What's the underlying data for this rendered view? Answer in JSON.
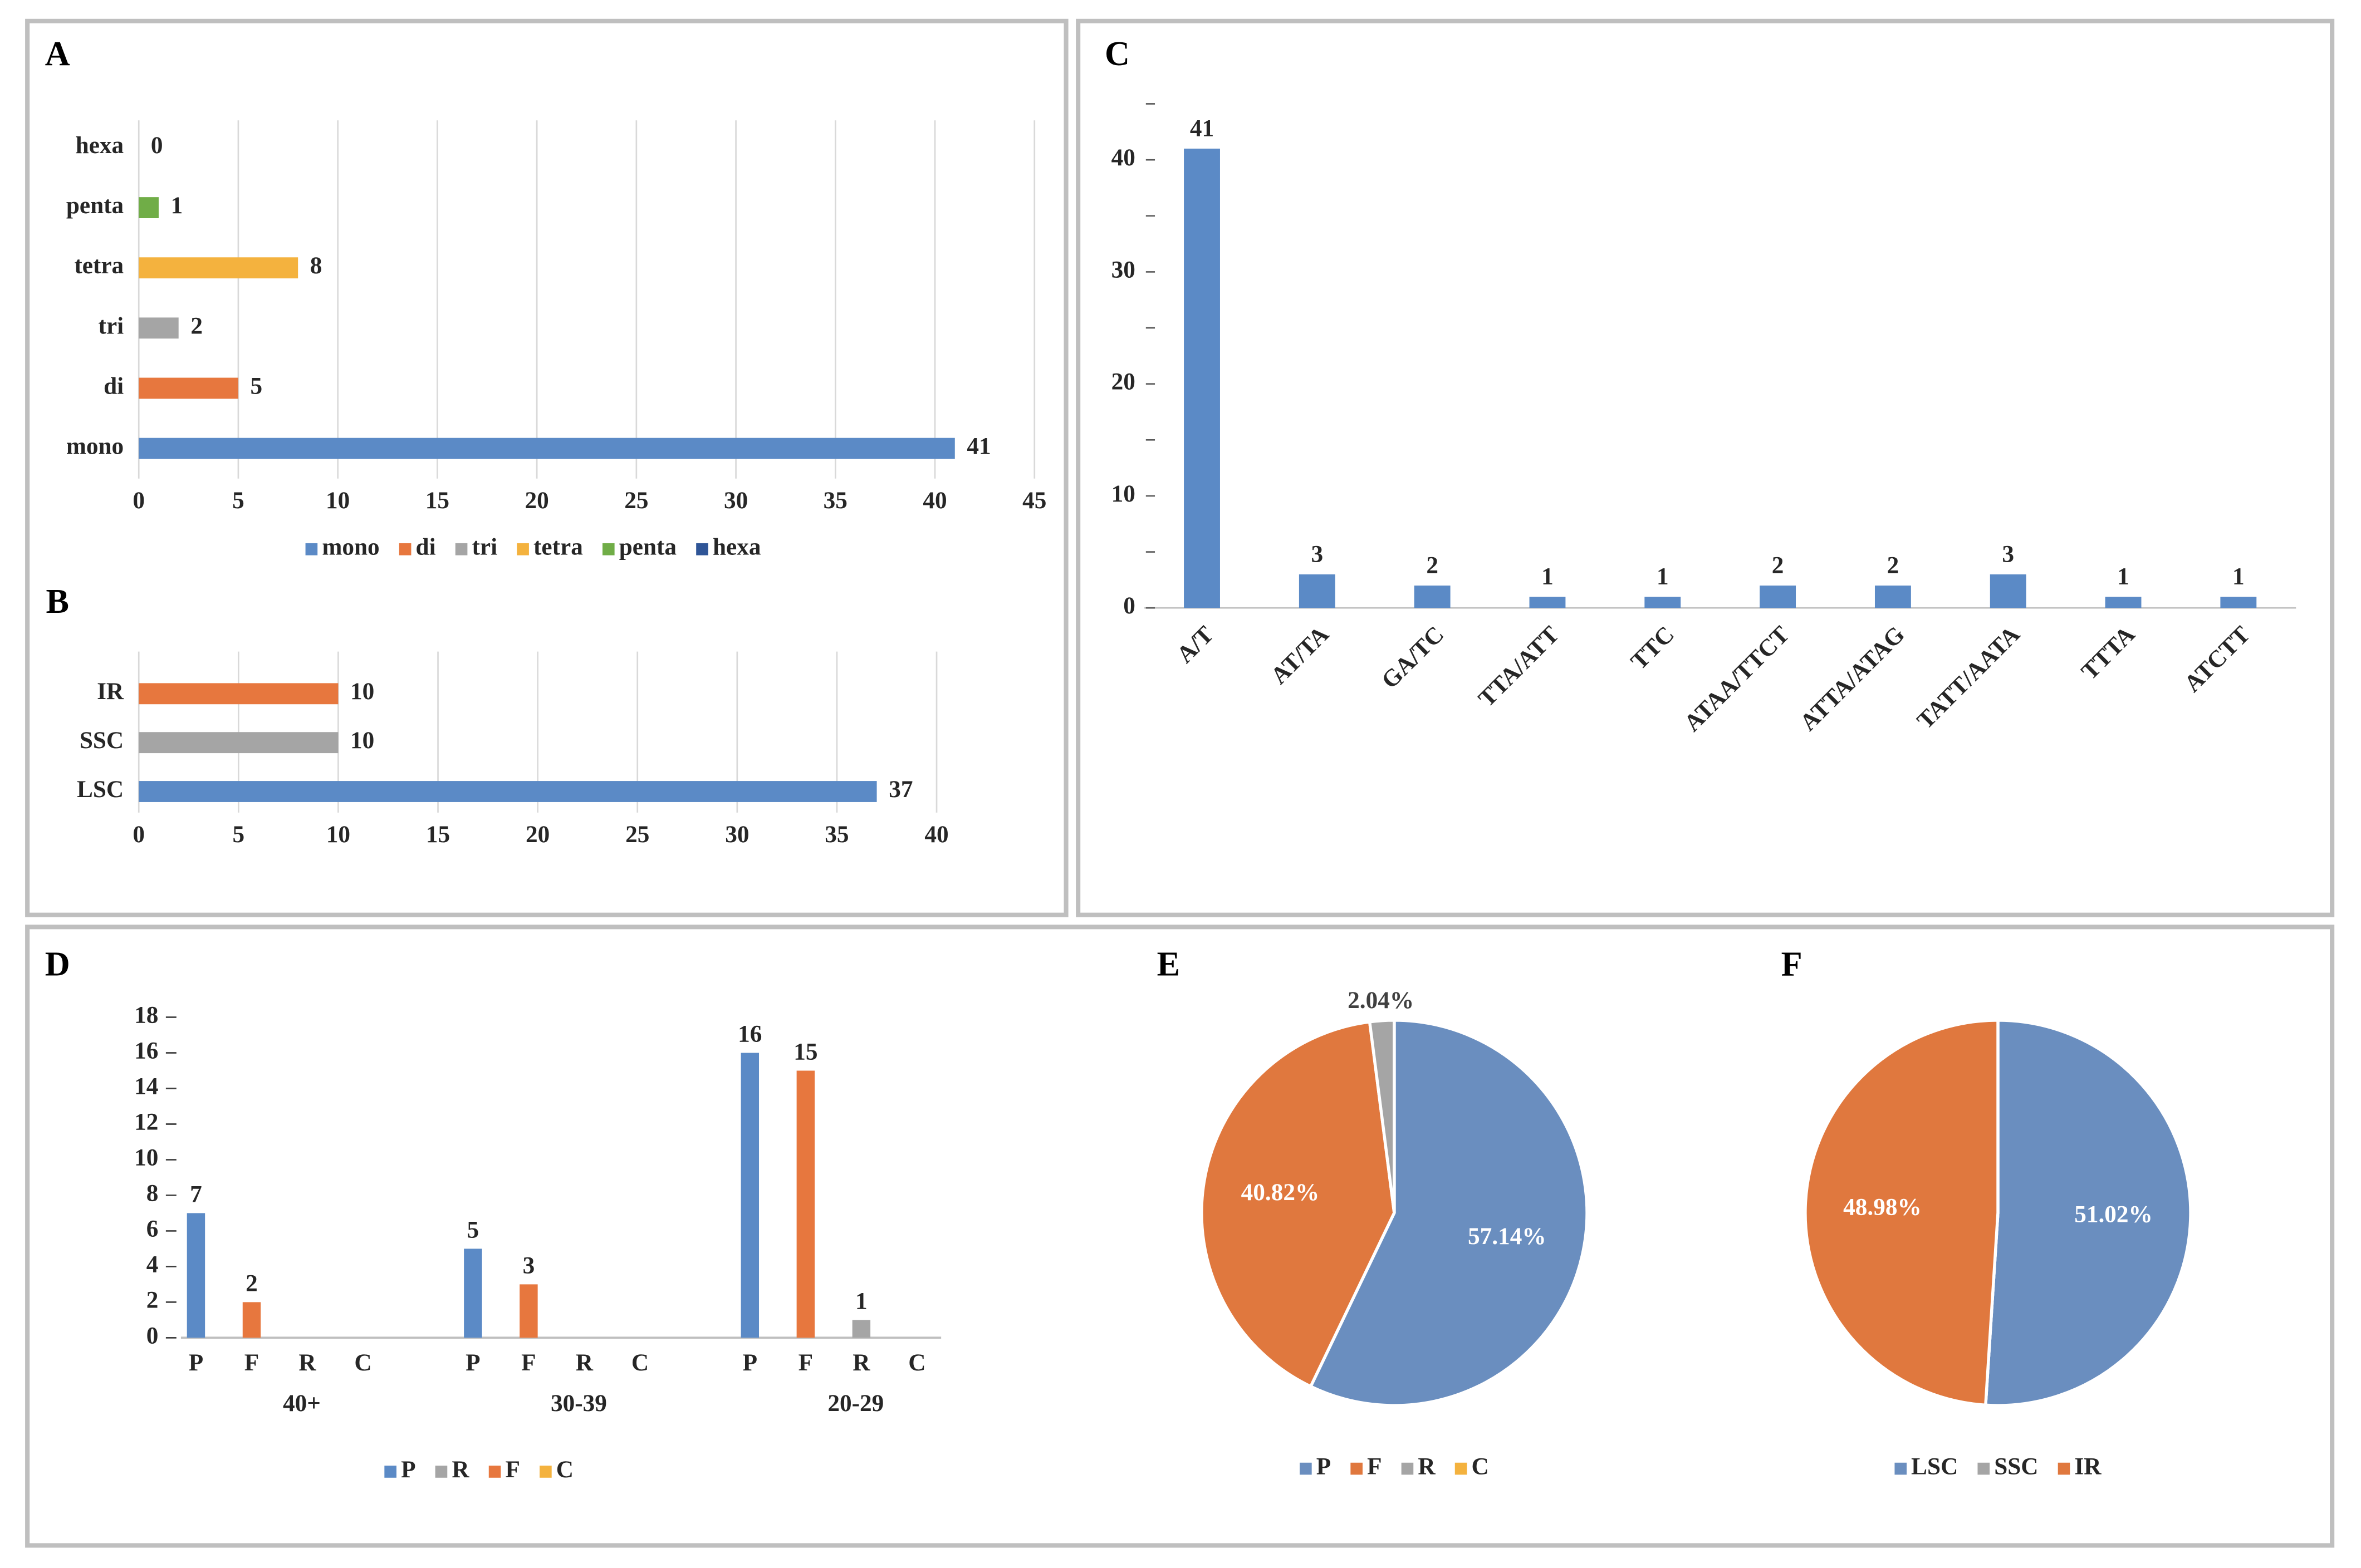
{
  "chart_data": [
    {
      "type": "hbar",
      "label": "A",
      "categories": [
        "mono",
        "di",
        "tri",
        "tetra",
        "penta",
        "hexa"
      ],
      "values": [
        41,
        5,
        2,
        8,
        1,
        0
      ],
      "colors": [
        "#5b8ac6",
        "#e7773e",
        "#a5a5a5",
        "#f4b23e",
        "#70ad47",
        "#2f5597"
      ],
      "xlim": [
        0,
        45
      ],
      "xticks": [
        0,
        5,
        10,
        15,
        20,
        25,
        30,
        35,
        40,
        45
      ],
      "grid": true,
      "legend": true
    },
    {
      "type": "hbar",
      "label": "B",
      "categories": [
        "LSC",
        "SSC",
        "IR"
      ],
      "values": [
        37,
        10,
        10
      ],
      "colors": [
        "#5b8ac6",
        "#a5a5a5",
        "#e7773e"
      ],
      "xlim": [
        0,
        40
      ],
      "xticks": [
        0,
        5,
        10,
        15,
        20,
        25,
        30,
        35,
        40
      ],
      "grid": true,
      "legend": false
    },
    {
      "type": "bar",
      "label": "C",
      "categories": [
        "A/T",
        "AT/TA",
        "GA/TC",
        "TTA/ATT",
        "TTC",
        "ATAA/TTCT",
        "ATTA/ATAG",
        "TATT/AATA",
        "TTTA",
        "ATCTT"
      ],
      "values": [
        41,
        3,
        2,
        1,
        1,
        2,
        2,
        3,
        1,
        1
      ],
      "color": "#5b8ac6",
      "ylim": [
        0,
        45
      ],
      "yticks": [
        0,
        10,
        20,
        30,
        40
      ],
      "yticks_minor": [
        5,
        15,
        25,
        35,
        45
      ]
    },
    {
      "type": "grouped_bar",
      "label": "D",
      "groups": [
        "40+",
        "30-39",
        "20-29"
      ],
      "subcategories": [
        "P",
        "F",
        "R",
        "C"
      ],
      "series": [
        {
          "name": "P",
          "color": "#5b8ac6",
          "values": [
            7,
            5,
            16
          ]
        },
        {
          "name": "R",
          "color": "#a5a5a5",
          "values": [
            0,
            0,
            1
          ]
        },
        {
          "name": "F",
          "color": "#e7773e",
          "values": [
            2,
            3,
            15
          ]
        },
        {
          "name": "C",
          "color": "#f4b23e",
          "values": [
            0,
            0,
            0
          ]
        }
      ],
      "ylim": [
        0,
        18
      ],
      "yticks": [
        0,
        2,
        4,
        6,
        8,
        10,
        12,
        14,
        16,
        18
      ]
    },
    {
      "type": "pie",
      "label": "E",
      "categories": [
        "P",
        "F",
        "R",
        "C"
      ],
      "values": [
        57.14,
        40.82,
        2.04,
        0
      ],
      "value_labels": [
        "57.14%",
        "40.82%",
        "2.04%",
        null
      ],
      "colors": [
        "#6a8ebf",
        "#e0783e",
        "#a5a5a5",
        "#f4b23e"
      ]
    },
    {
      "type": "pie",
      "label": "F",
      "categories": [
        "LSC",
        "SSC",
        "IR"
      ],
      "values": [
        51.02,
        0,
        48.98
      ],
      "value_labels": [
        "51.02%",
        null,
        "48.98%"
      ],
      "colors": [
        "#6a8ebf",
        "#a5a5a5",
        "#e0783e"
      ]
    }
  ]
}
